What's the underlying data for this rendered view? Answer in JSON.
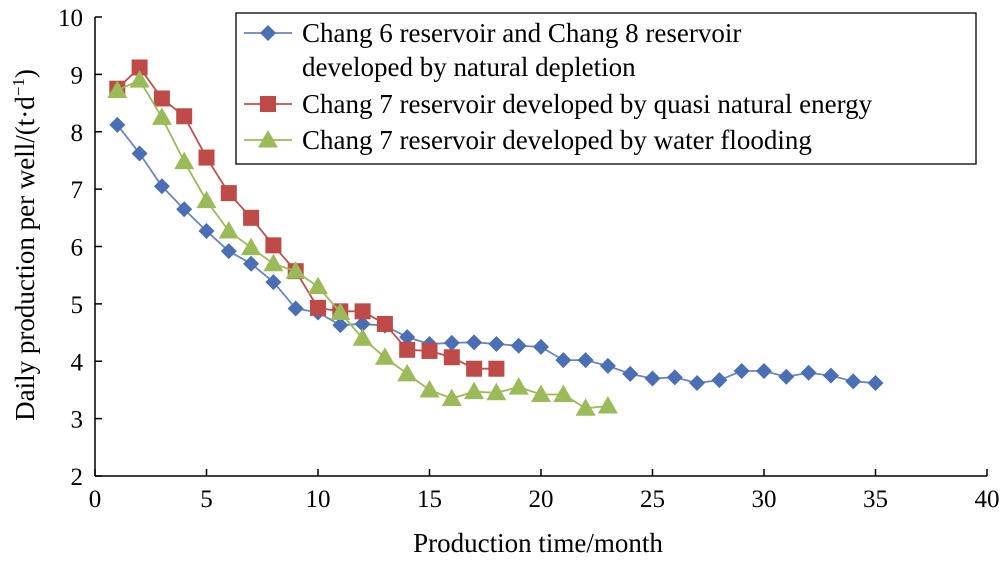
{
  "chart_data": {
    "type": "line",
    "xlabel": "Production time/month",
    "ylabel_main": "Daily production per well/(t·d",
    "ylabel_sup": "−1",
    "ylabel_close": ")",
    "xlim": [
      0,
      40
    ],
    "ylim": [
      2,
      10
    ],
    "xticks": [
      0,
      5,
      10,
      15,
      20,
      25,
      30,
      35,
      40
    ],
    "yticks": [
      2,
      3,
      4,
      5,
      6,
      7,
      8,
      9,
      10
    ],
    "grid": false,
    "legend_position": "top-right",
    "series": [
      {
        "name": "Chang 6 reservoir and Chang 8 reservoir developed by natural depletion",
        "legend_lines": [
          "Chang 6 reservoir and Chang 8 reservoir",
          "developed by natural depletion"
        ],
        "marker": "diamond",
        "line_color": "#6a85c2",
        "marker_color": "#4a6fb5",
        "x": [
          1,
          2,
          3,
          4,
          5,
          6,
          7,
          8,
          9,
          10,
          11,
          12,
          13,
          14,
          15,
          16,
          17,
          18,
          19,
          20,
          21,
          22,
          23,
          24,
          25,
          26,
          27,
          28,
          29,
          30,
          31,
          32,
          33,
          34,
          35
        ],
        "y": [
          8.12,
          7.62,
          7.05,
          6.65,
          6.27,
          5.92,
          5.7,
          5.38,
          4.92,
          4.85,
          4.63,
          4.65,
          4.62,
          4.42,
          4.3,
          4.32,
          4.33,
          4.3,
          4.27,
          4.25,
          4.02,
          4.02,
          3.92,
          3.78,
          3.7,
          3.72,
          3.62,
          3.67,
          3.83,
          3.83,
          3.73,
          3.8,
          3.75,
          3.65,
          3.62
        ]
      },
      {
        "name": "Chang 7 reservoir developed by quasi natural energy",
        "legend_lines": [
          "Chang 7 reservoir developed by quasi natural energy"
        ],
        "marker": "square",
        "line_color": "#c0504d",
        "marker_color": "#be4b48",
        "x": [
          1,
          2,
          3,
          4,
          5,
          6,
          7,
          8,
          9,
          10,
          11,
          12,
          13,
          14,
          15,
          16,
          17,
          18
        ],
        "y": [
          8.75,
          9.12,
          8.58,
          8.27,
          7.55,
          6.93,
          6.5,
          6.02,
          5.57,
          4.93,
          4.87,
          4.87,
          4.65,
          4.2,
          4.18,
          4.07,
          3.87,
          3.87
        ]
      },
      {
        "name": "Chang 7 reservoir developed by water flooding",
        "legend_lines": [
          "Chang 7 reservoir developed by water flooding"
        ],
        "marker": "triangle",
        "line_color": "#9bbb59",
        "marker_color": "#9bbb59",
        "x": [
          1,
          2,
          3,
          4,
          5,
          6,
          7,
          8,
          9,
          10,
          11,
          12,
          13,
          14,
          15,
          16,
          17,
          18,
          19,
          20,
          21,
          22,
          23
        ],
        "y": [
          8.72,
          8.9,
          8.25,
          7.48,
          6.8,
          6.27,
          5.98,
          5.7,
          5.57,
          5.3,
          4.85,
          4.4,
          4.07,
          3.78,
          3.5,
          3.35,
          3.47,
          3.45,
          3.55,
          3.42,
          3.42,
          3.18,
          3.22
        ]
      }
    ]
  }
}
